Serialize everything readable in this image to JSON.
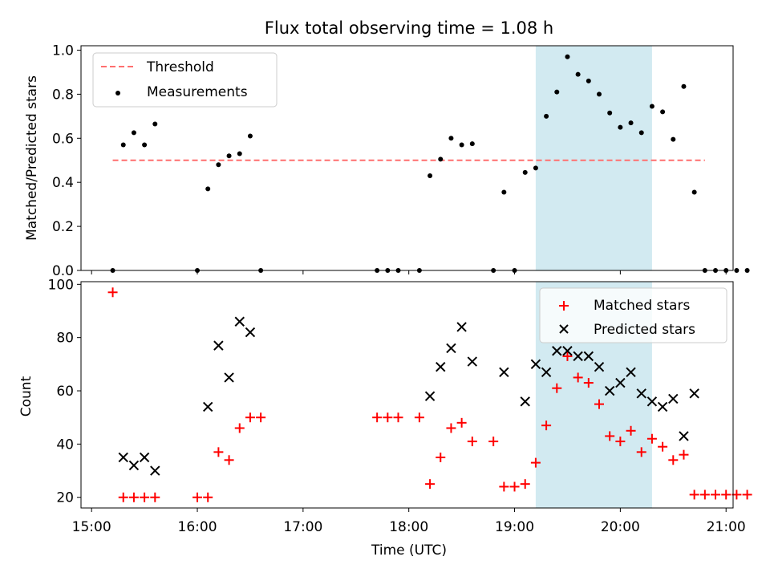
{
  "chart_data": [
    {
      "type": "scatter",
      "title": "Flux total observing time = 1.08 h",
      "xlabel": "",
      "ylabel": "Matched/Predicted stars",
      "xlim": [
        "14:54",
        "21:04"
      ],
      "ylim": [
        0,
        1.02
      ],
      "yticks": [
        "0.0",
        "0.2",
        "0.4",
        "0.6",
        "0.8",
        "1.0"
      ],
      "highlight_span": {
        "start": "19:12",
        "end": "20:18",
        "color": "#add8e6"
      },
      "legend": {
        "position": "upper left"
      },
      "series": [
        {
          "name": "Threshold",
          "style": "dashed-line",
          "color": "#ff6f6f",
          "points": [
            [
              "15:12",
              0.5
            ],
            [
              "20:48",
              0.5
            ]
          ]
        },
        {
          "name": "Measurements",
          "style": "dot",
          "color": "#000000",
          "points": [
            [
              "15:12",
              0.0
            ],
            [
              "15:18",
              0.57
            ],
            [
              "15:24",
              0.625
            ],
            [
              "15:30",
              0.57
            ],
            [
              "15:36",
              0.665
            ],
            [
              "16:00",
              0.0
            ],
            [
              "16:06",
              0.37
            ],
            [
              "16:12",
              0.48
            ],
            [
              "16:18",
              0.52
            ],
            [
              "16:24",
              0.53
            ],
            [
              "16:30",
              0.61
            ],
            [
              "16:36",
              0.0
            ],
            [
              "17:42",
              0.0
            ],
            [
              "17:48",
              0.0
            ],
            [
              "17:54",
              0.0
            ],
            [
              "18:06",
              0.0
            ],
            [
              "18:12",
              0.43
            ],
            [
              "18:18",
              0.505
            ],
            [
              "18:24",
              0.6
            ],
            [
              "18:30",
              0.57
            ],
            [
              "18:36",
              0.575
            ],
            [
              "18:48",
              0.0
            ],
            [
              "18:54",
              0.355
            ],
            [
              "19:00",
              0.0
            ],
            [
              "19:06",
              0.445
            ],
            [
              "19:12",
              0.465
            ],
            [
              "19:18",
              0.7
            ],
            [
              "19:24",
              0.81
            ],
            [
              "19:30",
              0.97
            ],
            [
              "19:36",
              0.89
            ],
            [
              "19:42",
              0.86
            ],
            [
              "19:48",
              0.8
            ],
            [
              "19:54",
              0.715
            ],
            [
              "20:00",
              0.65
            ],
            [
              "20:06",
              0.67
            ],
            [
              "20:12",
              0.625
            ],
            [
              "20:18",
              0.745
            ],
            [
              "20:24",
              0.72
            ],
            [
              "20:30",
              0.595
            ],
            [
              "20:36",
              0.835
            ],
            [
              "20:42",
              0.355
            ],
            [
              "20:48",
              0.0
            ],
            [
              "20:54",
              0.0
            ],
            [
              "21:00",
              0.0
            ],
            [
              "21:06",
              0.0
            ],
            [
              "21:12",
              0.0
            ]
          ]
        }
      ]
    },
    {
      "type": "scatter",
      "title": "",
      "xlabel": "Time (UTC)",
      "ylabel": "Count",
      "xlim": [
        "14:54",
        "21:04"
      ],
      "ylim": [
        16,
        101
      ],
      "yticks": [
        "20",
        "40",
        "60",
        "80",
        "100"
      ],
      "xticks": [
        "15:00",
        "16:00",
        "17:00",
        "18:00",
        "19:00",
        "20:00",
        "21:00"
      ],
      "highlight_span": {
        "start": "19:12",
        "end": "20:18",
        "color": "#add8e6"
      },
      "legend": {
        "position": "upper right"
      },
      "series": [
        {
          "name": "Matched stars",
          "style": "plus",
          "color": "#ff0000",
          "points": [
            [
              "15:12",
              97
            ],
            [
              "15:18",
              20
            ],
            [
              "15:24",
              20
            ],
            [
              "15:30",
              20
            ],
            [
              "15:36",
              20
            ],
            [
              "16:00",
              20
            ],
            [
              "16:06",
              20
            ],
            [
              "16:12",
              37
            ],
            [
              "16:18",
              34
            ],
            [
              "16:24",
              46
            ],
            [
              "16:30",
              50
            ],
            [
              "16:36",
              50
            ],
            [
              "17:42",
              50
            ],
            [
              "17:48",
              50
            ],
            [
              "17:54",
              50
            ],
            [
              "18:06",
              50
            ],
            [
              "18:12",
              25
            ],
            [
              "18:18",
              35
            ],
            [
              "18:24",
              46
            ],
            [
              "18:30",
              48
            ],
            [
              "18:36",
              41
            ],
            [
              "18:48",
              41
            ],
            [
              "18:54",
              24
            ],
            [
              "19:00",
              24
            ],
            [
              "19:06",
              25
            ],
            [
              "19:12",
              33
            ],
            [
              "19:18",
              47
            ],
            [
              "19:24",
              61
            ],
            [
              "19:30",
              73
            ],
            [
              "19:36",
              65
            ],
            [
              "19:42",
              63
            ],
            [
              "19:48",
              55
            ],
            [
              "19:54",
              43
            ],
            [
              "20:00",
              41
            ],
            [
              "20:06",
              45
            ],
            [
              "20:12",
              37
            ],
            [
              "20:18",
              42
            ],
            [
              "20:24",
              39
            ],
            [
              "20:30",
              34
            ],
            [
              "20:36",
              36
            ],
            [
              "20:42",
              21
            ],
            [
              "20:48",
              21
            ],
            [
              "20:54",
              21
            ],
            [
              "21:00",
              21
            ],
            [
              "21:06",
              21
            ],
            [
              "21:12",
              21
            ]
          ]
        },
        {
          "name": "Predicted stars",
          "style": "x",
          "color": "#000000",
          "points": [
            [
              "15:18",
              35
            ],
            [
              "15:24",
              32
            ],
            [
              "15:30",
              35
            ],
            [
              "15:36",
              30
            ],
            [
              "16:06",
              54
            ],
            [
              "16:12",
              77
            ],
            [
              "16:18",
              65
            ],
            [
              "16:24",
              86
            ],
            [
              "16:30",
              82
            ],
            [
              "18:12",
              58
            ],
            [
              "18:18",
              69
            ],
            [
              "18:24",
              76
            ],
            [
              "18:30",
              84
            ],
            [
              "18:36",
              71
            ],
            [
              "18:54",
              67
            ],
            [
              "19:06",
              56
            ],
            [
              "19:12",
              70
            ],
            [
              "19:18",
              67
            ],
            [
              "19:24",
              75
            ],
            [
              "19:30",
              75
            ],
            [
              "19:36",
              73
            ],
            [
              "19:42",
              73
            ],
            [
              "19:48",
              69
            ],
            [
              "19:54",
              60
            ],
            [
              "20:00",
              63
            ],
            [
              "20:06",
              67
            ],
            [
              "20:12",
              59
            ],
            [
              "20:18",
              56
            ],
            [
              "20:24",
              54
            ],
            [
              "20:30",
              57
            ],
            [
              "20:36",
              43
            ],
            [
              "20:42",
              59
            ]
          ]
        }
      ]
    }
  ]
}
